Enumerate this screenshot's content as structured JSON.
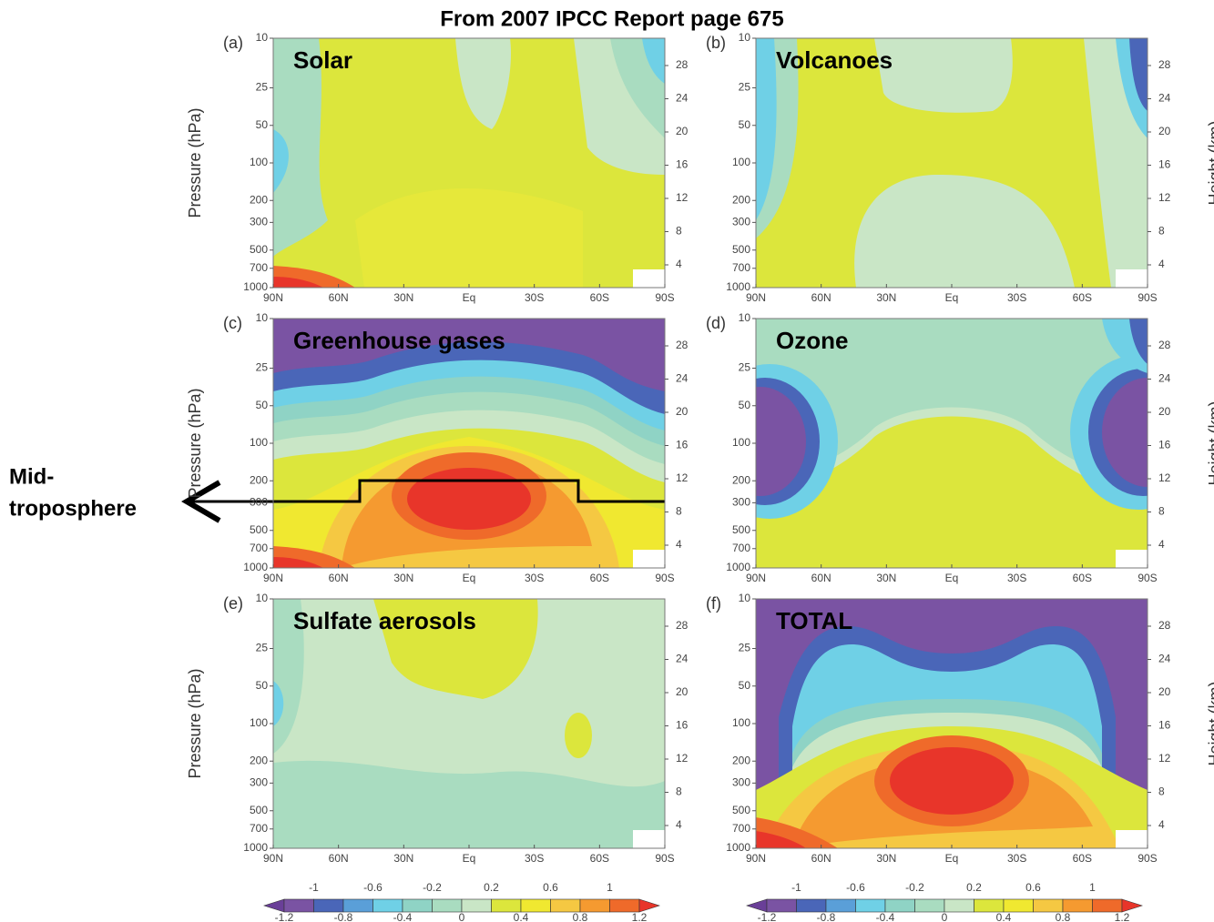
{
  "title": "From 2007 IPCC Report page 675",
  "annotation": [
    "Mid-",
    "troposphere"
  ],
  "pressure_label": "Pressure (hPa)",
  "height_label": "Height (km)",
  "pressure_ticks": [
    "10",
    "25",
    "50",
    "100",
    "200",
    "300",
    "500",
    "700",
    "1000"
  ],
  "height_ticks": [
    "28",
    "24",
    "20",
    "16",
    "12",
    "8",
    "4"
  ],
  "lat_ticks": [
    "90N",
    "60N",
    "30N",
    "Eq",
    "30S",
    "60S",
    "90S"
  ],
  "panels": [
    {
      "letter": "(a)",
      "name": "Solar"
    },
    {
      "letter": "(b)",
      "name": "Volcanoes"
    },
    {
      "letter": "(c)",
      "name": "Greenhouse gases"
    },
    {
      "letter": "(d)",
      "name": "Ozone"
    },
    {
      "letter": "(e)",
      "name": "Sulfate aerosols"
    },
    {
      "letter": "(f)",
      "name": "TOTAL"
    }
  ],
  "colorbar": {
    "upper": [
      "-1",
      "-0.6",
      "-0.2",
      "0.2",
      "0.6",
      "1"
    ],
    "lower": [
      "-1.2",
      "-0.8",
      "-0.4",
      "0",
      "0.4",
      "0.8",
      "1.2"
    ],
    "colors": [
      "#6a3f98",
      "#7a53a3",
      "#4a66b8",
      "#5a9fd8",
      "#6fd0e6",
      "#8fd3c5",
      "#a9dcc0",
      "#c9e6c6",
      "#dce63c",
      "#f0e830",
      "#f5c842",
      "#f59a30",
      "#ef6a2a",
      "#e8352a"
    ]
  }
}
